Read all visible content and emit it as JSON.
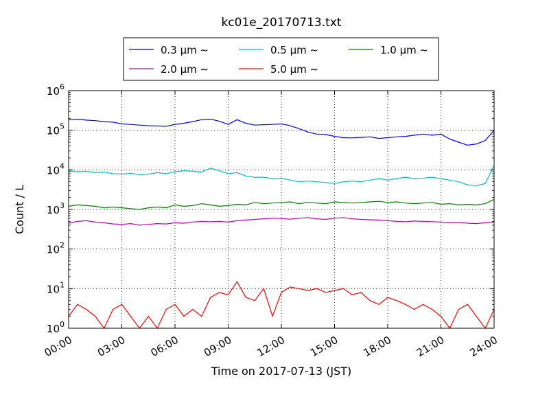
{
  "chart_data": {
    "type": "line",
    "title": "kc01e_20170713.txt",
    "xlabel": "Time on 2017-07-13 (JST)",
    "ylabel": "Count / L",
    "yscale": "log",
    "ylim_exponents": [
      0,
      6
    ],
    "y_tick_base": "10",
    "y_tick_exponents": [
      "0",
      "1",
      "2",
      "3",
      "4",
      "5",
      "6"
    ],
    "xlim_hours": [
      0,
      24
    ],
    "x_tick_labels": [
      "00:00",
      "03:00",
      "06:00",
      "09:00",
      "12:00",
      "15:00",
      "18:00",
      "21:00",
      "24:00"
    ],
    "grid": "dotted",
    "legend": "top-center, outside plot, 3 columns",
    "x_hours": [
      0,
      0.5,
      1,
      1.5,
      2,
      2.5,
      3,
      3.5,
      4,
      4.5,
      5,
      5.5,
      6,
      6.5,
      7,
      7.5,
      8,
      8.5,
      9,
      9.5,
      10,
      10.5,
      11,
      11.5,
      12,
      12.5,
      13,
      13.5,
      14,
      14.5,
      15,
      15.5,
      16,
      16.5,
      17,
      17.5,
      18,
      18.5,
      19,
      19.5,
      20,
      20.5,
      21,
      21.5,
      22,
      22.5,
      23,
      23.5,
      24
    ],
    "series": [
      {
        "name": "0.3 μm ∼",
        "color": "#0000ff",
        "values": [
          185000,
          190000,
          180000,
          175000,
          165000,
          160000,
          145000,
          140000,
          135000,
          130000,
          128000,
          126000,
          140000,
          150000,
          165000,
          185000,
          190000,
          170000,
          140000,
          185000,
          150000,
          135000,
          138000,
          140000,
          145000,
          130000,
          110000,
          90000,
          80000,
          78000,
          70000,
          65000,
          64000,
          66000,
          68000,
          62000,
          65000,
          68000,
          70000,
          75000,
          80000,
          75000,
          80000,
          60000,
          50000,
          42000,
          45000,
          55000,
          100000
        ]
      },
      {
        "name": "0.5 μm ∼",
        "color": "#00bfbf",
        "values": [
          9500,
          9000,
          9200,
          8500,
          8800,
          8000,
          7800,
          8200,
          7500,
          7800,
          8500,
          8000,
          9000,
          9500,
          9200,
          8800,
          11000,
          9500,
          8000,
          8500,
          7000,
          6500,
          6500,
          6000,
          6200,
          5500,
          5000,
          5200,
          5000,
          4800,
          4500,
          5000,
          5200,
          5000,
          5500,
          6000,
          5500,
          6000,
          6500,
          6000,
          6200,
          6500,
          6000,
          5500,
          5000,
          4200,
          4000,
          4500,
          13000
        ]
      },
      {
        "name": "1.0 μm ∼",
        "color": "#008000",
        "values": [
          1200,
          1300,
          1250,
          1200,
          1100,
          1150,
          1100,
          1050,
          1000,
          1100,
          1150,
          1100,
          1300,
          1200,
          1250,
          1400,
          1300,
          1200,
          1250,
          1350,
          1300,
          1500,
          1400,
          1450,
          1500,
          1550,
          1400,
          1500,
          1450,
          1400,
          1550,
          1500,
          1450,
          1500,
          1550,
          1600,
          1500,
          1550,
          1450,
          1400,
          1450,
          1500,
          1350,
          1400,
          1300,
          1350,
          1300,
          1400,
          1800
        ]
      },
      {
        "name": "2.0 μm ∼",
        "color": "#bf00bf",
        "values": [
          450,
          500,
          520,
          480,
          460,
          430,
          420,
          440,
          400,
          420,
          440,
          430,
          460,
          450,
          480,
          500,
          490,
          500,
          480,
          520,
          540,
          560,
          580,
          600,
          590,
          570,
          600,
          620,
          580,
          560,
          600,
          620,
          580,
          560,
          550,
          540,
          520,
          500,
          490,
          510,
          500,
          490,
          480,
          460,
          470,
          450,
          440,
          460,
          480
        ]
      },
      {
        "name": "5.0 μm ∼",
        "color": "#ff0000",
        "values": [
          2,
          4,
          3,
          2,
          1,
          3,
          4,
          2,
          1,
          2,
          1,
          3,
          4,
          2,
          3,
          2,
          6,
          8,
          7,
          15,
          6,
          5,
          10,
          2,
          8,
          11,
          10,
          9,
          10,
          8,
          9,
          10,
          7,
          8,
          5,
          4,
          6,
          5,
          4,
          3,
          4,
          3,
          2,
          1,
          3,
          4,
          2,
          1,
          3
        ]
      }
    ]
  }
}
